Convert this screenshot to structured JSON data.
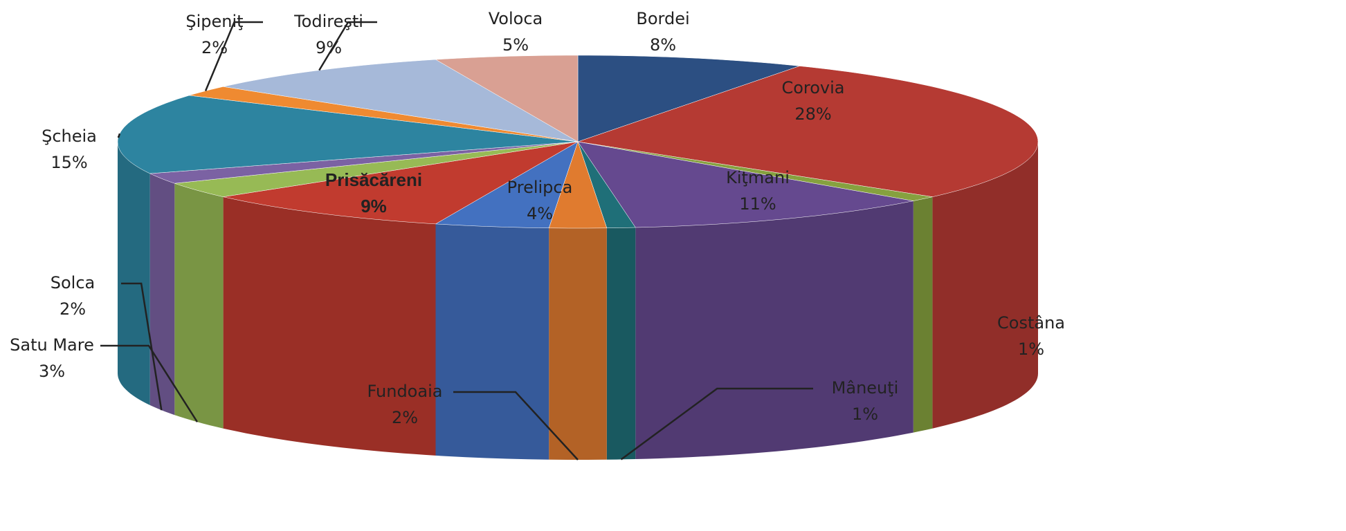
{
  "chart_data": {
    "type": "pie3d",
    "categories": [
      "Bordei",
      "Corovia",
      "Costâna",
      "Kiţmani",
      "Mâneuţi",
      "Fundoaia",
      "Prelipca",
      "Prisăcăreni",
      "Satu Mare",
      "Solca",
      "Şcheia",
      "Şipeniţ",
      "Todireşti",
      "Voloca"
    ],
    "values": [
      8,
      28,
      1,
      11,
      1,
      2,
      4,
      9,
      3,
      2,
      15,
      2,
      9,
      5
    ],
    "value_labels": [
      "8%",
      "28%",
      "1%",
      "11%",
      "1%",
      "2%",
      "4%",
      "9%",
      "3%",
      "2%",
      "15%",
      "2%",
      "9%",
      "5%"
    ],
    "colors": [
      "#2c4f82",
      "#b53a33",
      "#86a13f",
      "#65498f",
      "#1f6f78",
      "#e07b2f",
      "#4371c0",
      "#c13b2f",
      "#97ba55",
      "#7b62a3",
      "#2d84a0",
      "#ef8a31",
      "#a6b9d9",
      "#d9a093"
    ]
  }
}
